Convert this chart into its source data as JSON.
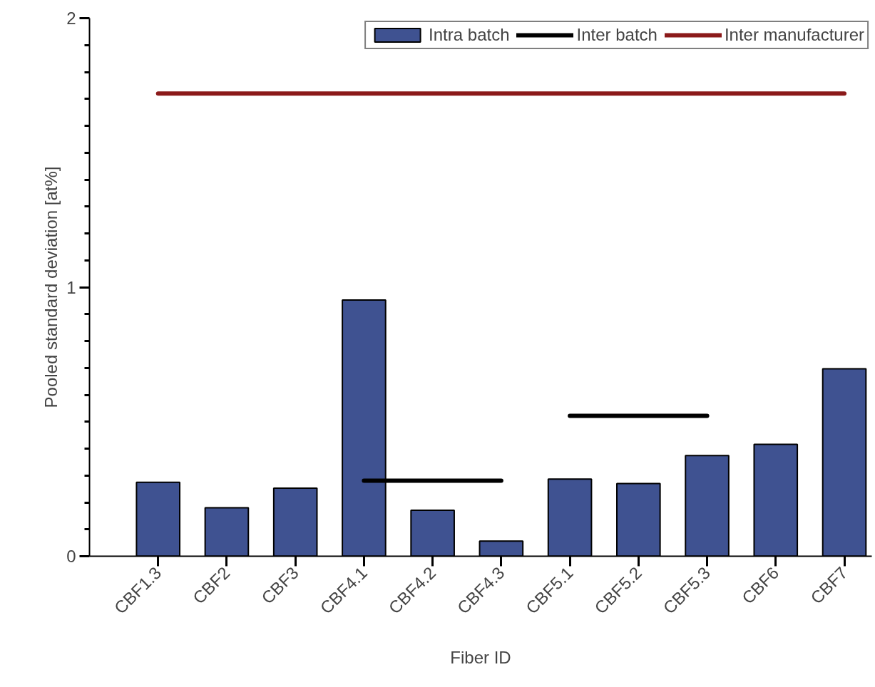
{
  "chart_data": {
    "type": "bar",
    "xlabel": "Fiber ID",
    "ylabel": "Pooled standard deviation [at%]",
    "categories": [
      "CBF1.3",
      "CBF2",
      "CBF3",
      "CBF4.1",
      "CBF4.2",
      "CBF4.3",
      "CBF5.1",
      "CBF5.2",
      "CBF5.3",
      "CBF6",
      "CBF7"
    ],
    "series": [
      {
        "name": "Intra batch",
        "color": "#3f5291",
        "values": [
          0.275,
          0.18,
          0.253,
          0.952,
          0.171,
          0.056,
          0.287,
          0.27,
          0.374,
          0.416,
          0.697
        ]
      },
      {
        "name": "Inter batch",
        "type": "line",
        "color": "#000000",
        "values": [
          null,
          null,
          null,
          0.281,
          0.281,
          0.281,
          null,
          null,
          null,
          null,
          null
        ]
      },
      {
        "type": "line",
        "color": "#000000",
        "values": [
          null,
          null,
          null,
          null,
          null,
          null,
          0.522,
          0.522,
          0.522,
          null,
          null
        ]
      },
      {
        "name": "Inter manufacturer",
        "type": "line",
        "color": "#8b1a1a",
        "values": [
          1.72,
          1.72,
          1.72,
          1.72,
          1.72,
          1.72,
          1.72,
          1.72,
          1.72,
          1.72,
          1.72
        ]
      }
    ],
    "ylim": [
      0,
      2
    ],
    "yticks": [
      0,
      1,
      2
    ],
    "grid": false,
    "legend": "top right"
  }
}
